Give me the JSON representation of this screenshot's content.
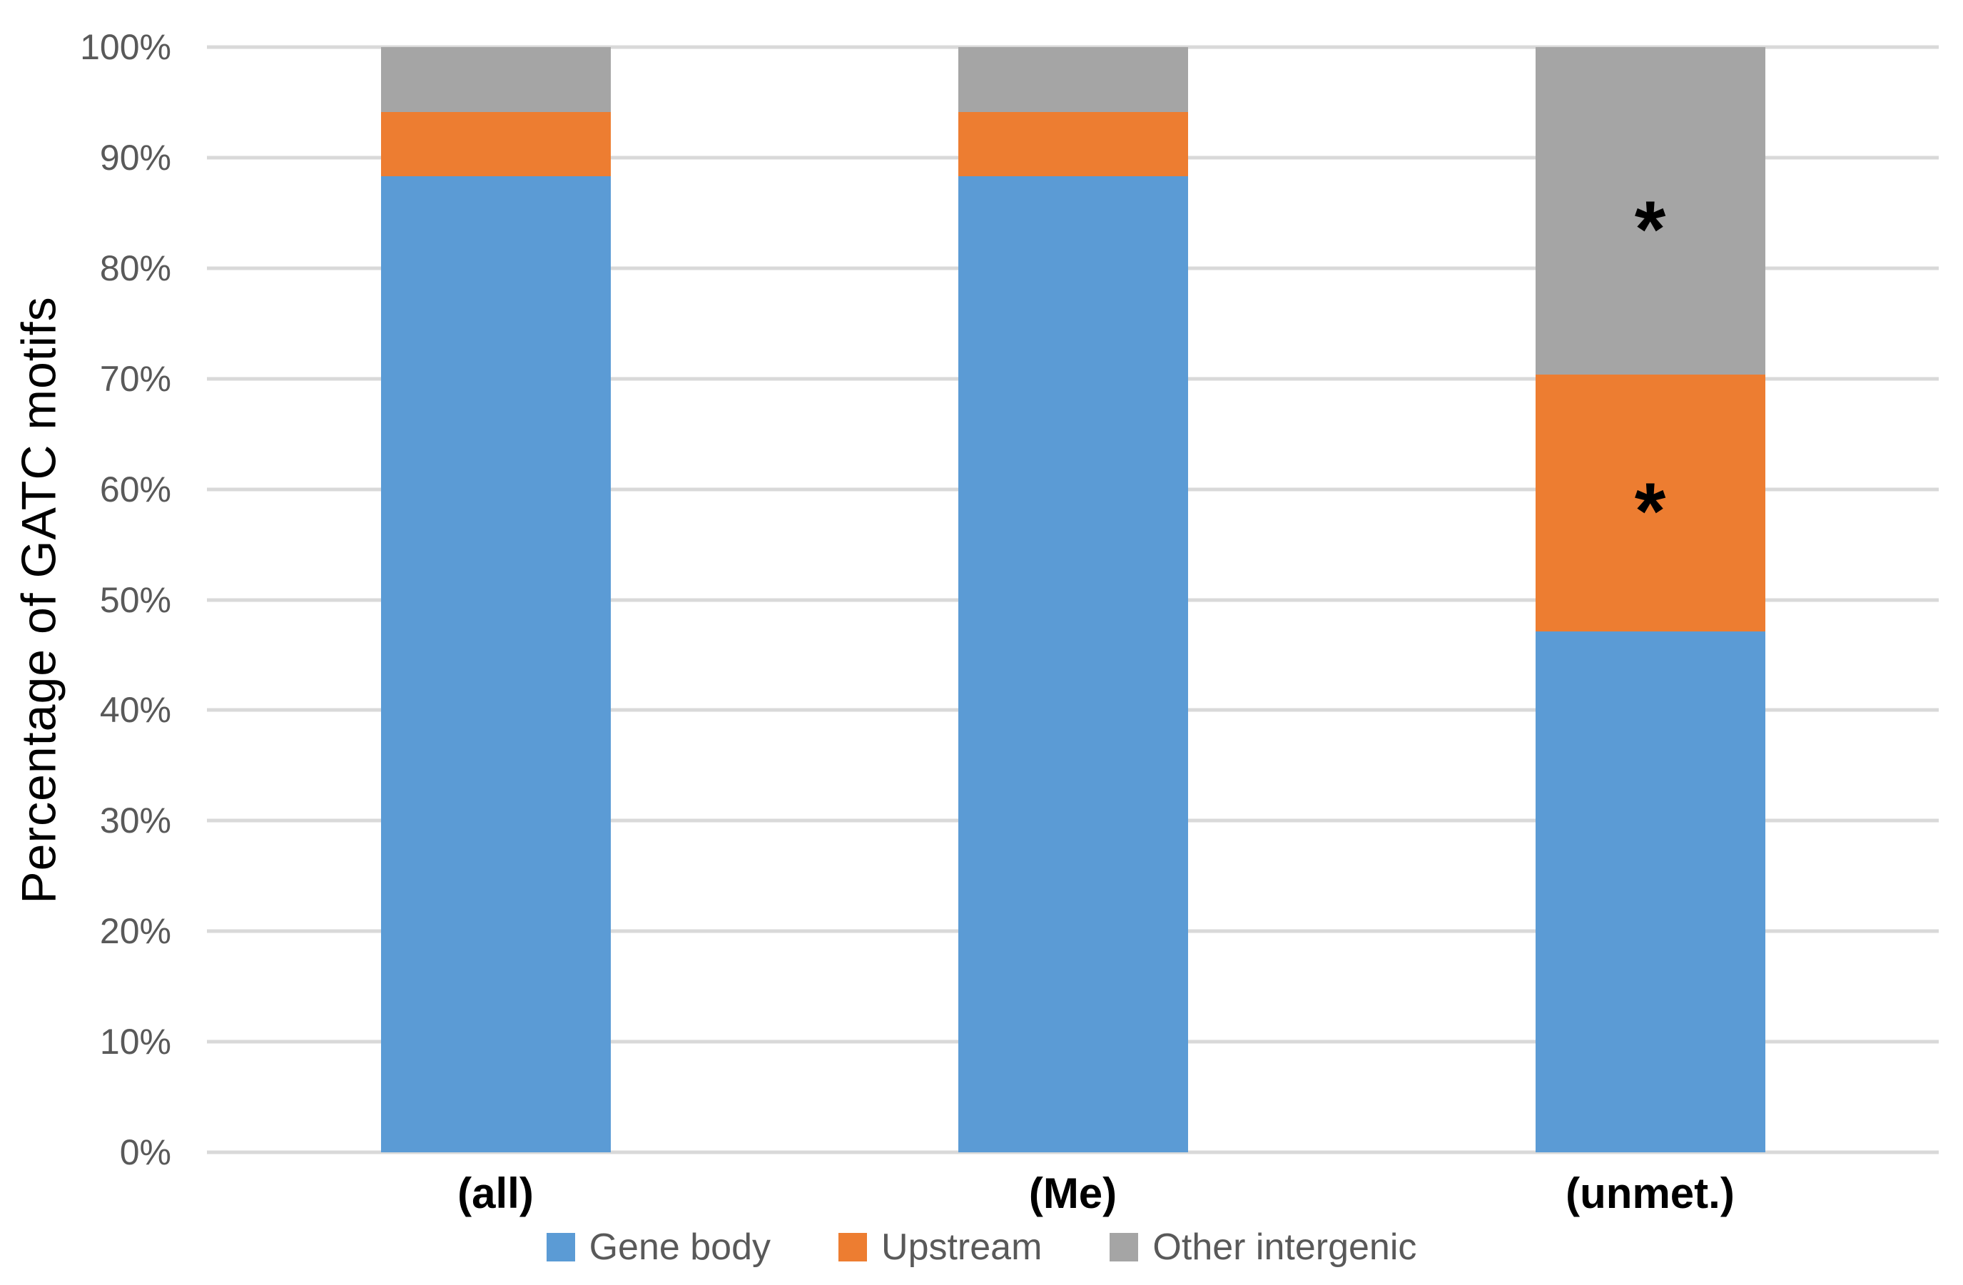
{
  "chart_data": {
    "type": "bar",
    "stacked": true,
    "orientation": "vertical",
    "title": "",
    "xlabel": "",
    "ylabel": "Percentage of GATC motifs",
    "ylim": [
      0,
      100
    ],
    "grid": true,
    "legend_position": "bottom",
    "categories": [
      "(all)",
      "(Me)",
      "(unmet.)"
    ],
    "series": [
      {
        "name": "Gene body",
        "color": "#5B9BD5",
        "values": [
          88.3,
          88.3,
          47.1
        ]
      },
      {
        "name": "Upstream",
        "color": "#ED7D31",
        "values": [
          5.8,
          5.8,
          23.3
        ]
      },
      {
        "name": "Other intergenic",
        "color": "#A5A5A5",
        "values": [
          5.9,
          5.9,
          29.6
        ]
      }
    ],
    "yticks": [
      {
        "label": "0%",
        "value": 0
      },
      {
        "label": "10%",
        "value": 10
      },
      {
        "label": "20%",
        "value": 20
      },
      {
        "label": "30%",
        "value": 30
      },
      {
        "label": "40%",
        "value": 40
      },
      {
        "label": "50%",
        "value": 50
      },
      {
        "label": "60%",
        "value": 60
      },
      {
        "label": "70%",
        "value": 70
      },
      {
        "label": "80%",
        "value": 80
      },
      {
        "label": "90%",
        "value": 90
      },
      {
        "label": "100%",
        "value": 100
      }
    ],
    "annotations": [
      {
        "text": "*",
        "category_index": 2,
        "series": "Other intergenic",
        "y_pct": 83.5
      },
      {
        "text": "*",
        "category_index": 2,
        "series": "Upstream",
        "y_pct": 58.0
      }
    ]
  },
  "colors": {
    "gridline": "#D9D9D9",
    "tick_text": "#595959",
    "legend_text": "#595959",
    "category_text": "#000000",
    "axis_title_text": "#000000",
    "annotation_text": "#000000",
    "background": "#FFFFFF"
  }
}
